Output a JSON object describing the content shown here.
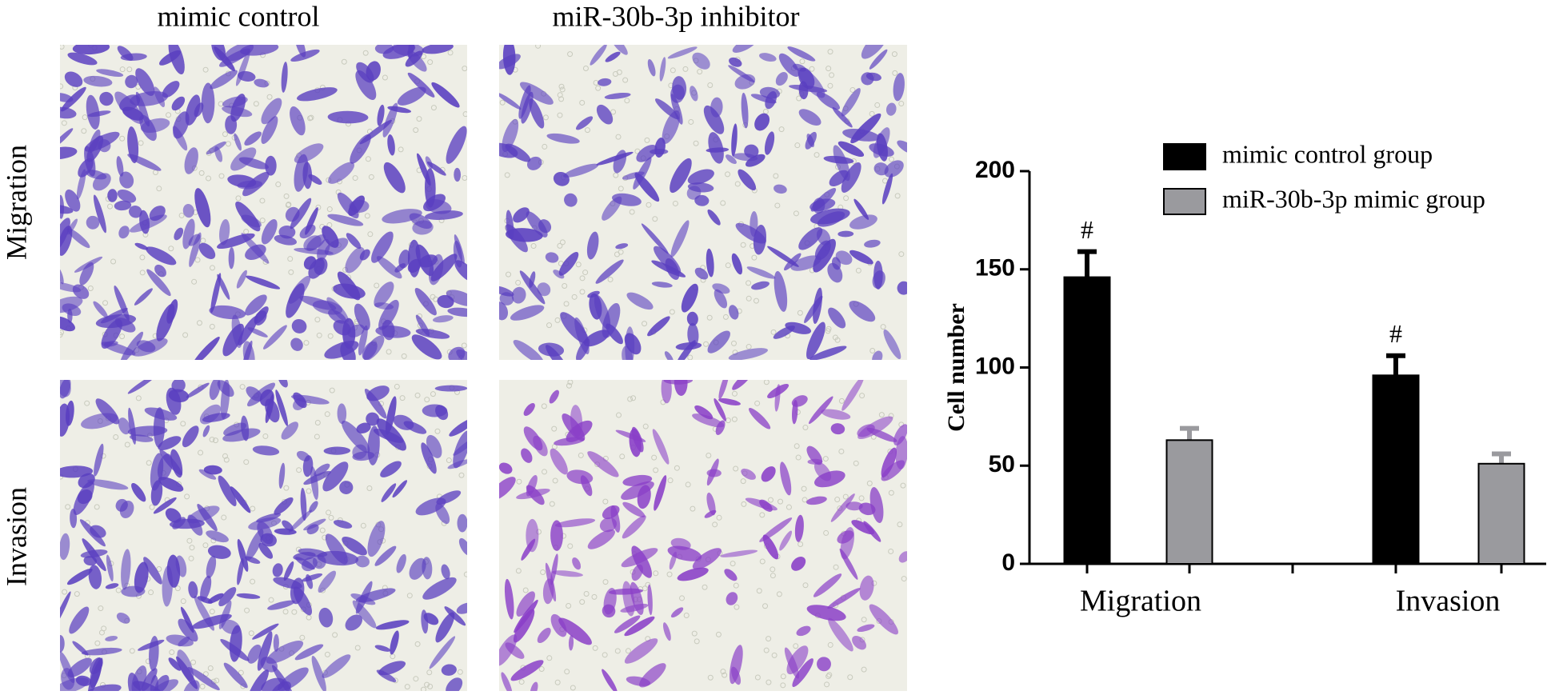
{
  "panels": {
    "columns": [
      "mimic control",
      "miR-30b-3p inhibitor"
    ],
    "rows": [
      "Migration",
      "Invasion"
    ]
  },
  "chart_data": {
    "type": "bar",
    "ylabel": "Cell number",
    "categories": [
      "Migration",
      "Invasion"
    ],
    "series": [
      {
        "name": "mimic control group",
        "color": "#000000",
        "values": [
          146,
          96
        ],
        "errors": [
          13,
          10
        ],
        "annotations": [
          "#",
          "#"
        ]
      },
      {
        "name": "miR-30b-3p mimic group",
        "color": "#9a9a9e",
        "values": [
          63,
          51
        ],
        "errors": [
          6,
          5
        ]
      }
    ],
    "ylim": [
      0,
      200
    ],
    "yticks": [
      0,
      50,
      100,
      150,
      200
    ],
    "legend": "top-right"
  }
}
